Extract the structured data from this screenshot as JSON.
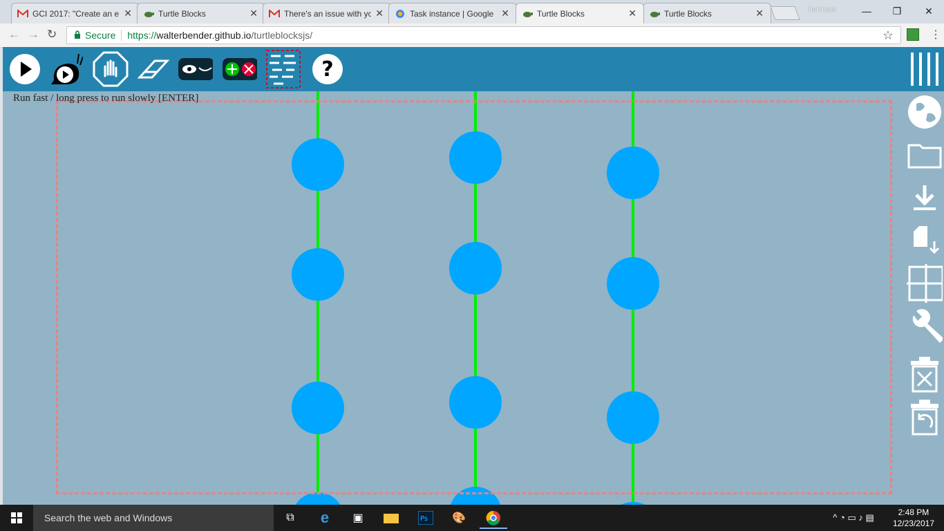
{
  "browser": {
    "tabs": [
      {
        "title": "GCI 2017: \"Create an e",
        "icon": "gmail-icon",
        "active": false
      },
      {
        "title": "Turtle Blocks",
        "icon": "turtle-icon",
        "active": false
      },
      {
        "title": "There's an issue with yo",
        "icon": "gmail-icon",
        "active": false
      },
      {
        "title": "Task instance | Google",
        "icon": "gear-icon",
        "active": false
      },
      {
        "title": "Turtle Blocks",
        "icon": "turtle-icon",
        "active": true
      },
      {
        "title": "Turtle Blocks",
        "icon": "turtle-icon",
        "active": false
      }
    ],
    "profile": "harmeet",
    "secure_label": "Secure",
    "url_scheme": "https://",
    "url_host": "walterbender.github.io",
    "url_path": "/turtleblocksjs/"
  },
  "app": {
    "hint": "Run fast / long press to run slowly [ENTER]",
    "toolbar": [
      "run-fast-icon",
      "run-slow-icon",
      "stop-icon",
      "clear-icon",
      "hide-blocks-icon",
      "collapse-blocks-icon",
      "palette-icon",
      "help-icon"
    ],
    "sidebar": [
      "menu-icon",
      "globe-icon",
      "open-folder-icon",
      "save-icon",
      "save-as-icon",
      "grid-icon",
      "settings-icon",
      "delete-icon",
      "restore-icon"
    ],
    "colors": {
      "line": "#00ee00",
      "dot": "#00a6ff",
      "canvas": "#92b4c6",
      "bar": "#2584af"
    }
  },
  "taskbar": {
    "search_placeholder": "Search the web and Windows",
    "time": "2:48 PM",
    "date": "12/23/2017"
  }
}
